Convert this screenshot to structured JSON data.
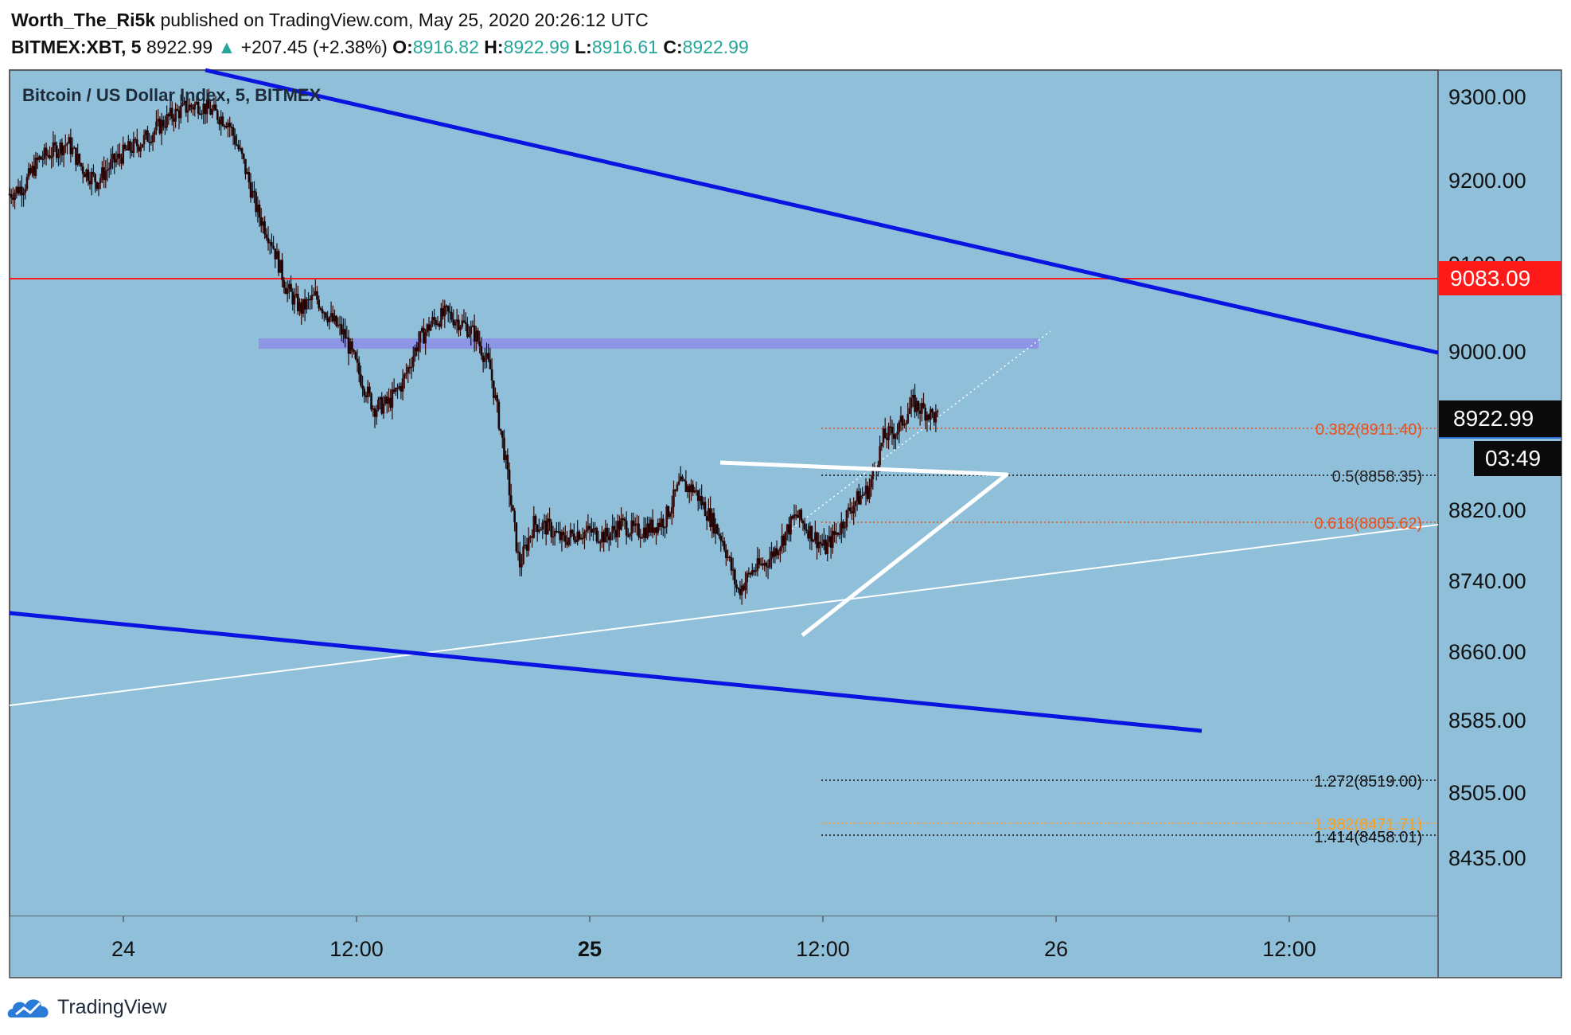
{
  "header": {
    "author": "Worth_The_Ri5k",
    "published": "published on TradingView.com, May 25, 2020 20:26:12 UTC",
    "symbol": "BITMEX:XBT, 5",
    "last": "8922.99",
    "change_arrow": "▲",
    "change": "+207.45 (+2.38%)",
    "o_label": "O:",
    "o": "8916.82",
    "h_label": "H:",
    "h": "8922.99",
    "l_label": "L:",
    "l": "8916.61",
    "c_label": "C:",
    "c": "8922.99"
  },
  "footer": {
    "brand": "TradingView",
    "logo_icon": "tradingview-cloud-icon"
  },
  "colors": {
    "plot_bg": "#8fbfd9",
    "channel": "#0a14e0",
    "red_line": "#ff1a1a",
    "fib_red": "#e8501c",
    "fib_black": "#111111",
    "fib_orange": "#ff9e1a",
    "candle": "#2a0a0a"
  },
  "chart_data": {
    "type": "candlestick",
    "title": "Bitcoin / US Dollar Index, 5, BITMEX",
    "y_ticks": [
      "9300.00",
      "9200.00",
      "9100.00",
      "9000.00",
      "8820.00",
      "8740.00",
      "8660.00",
      "8585.00",
      "8505.00",
      "8435.00"
    ],
    "x_ticks": [
      {
        "label": "24",
        "bold": false
      },
      {
        "label": "12:00",
        "bold": false
      },
      {
        "label": "25",
        "bold": true
      },
      {
        "label": "12:00",
        "bold": false
      },
      {
        "label": "26",
        "bold": false
      },
      {
        "label": "12:00",
        "bold": false
      }
    ],
    "price_labels": [
      {
        "text": "9083.09",
        "kind": "red"
      },
      {
        "text": "8922.99",
        "kind": "black"
      },
      {
        "text": "03:49",
        "kind": "black"
      }
    ],
    "fib_levels": [
      {
        "label": "0.382(8911.40)",
        "color": "red"
      },
      {
        "label": "0.5(8858.35)",
        "color": "black"
      },
      {
        "label": "0.618(8805.62)",
        "color": "red"
      },
      {
        "label": "1.272(8519.00)",
        "color": "black"
      },
      {
        "label": "1.382(8471.71)",
        "color": "orange"
      },
      {
        "label": "1.414(8458.01)",
        "color": "black"
      }
    ],
    "price_path": [
      [
        0.0,
        9185
      ],
      [
        0.5,
        9195
      ],
      [
        1.0,
        9225
      ],
      [
        1.5,
        9235
      ],
      [
        2.0,
        9245
      ],
      [
        2.5,
        9215
      ],
      [
        3.0,
        9200
      ],
      [
        3.5,
        9220
      ],
      [
        4.0,
        9235
      ],
      [
        4.5,
        9245
      ],
      [
        5.0,
        9260
      ],
      [
        5.5,
        9275
      ],
      [
        6.0,
        9285
      ],
      [
        6.5,
        9290
      ],
      [
        7.0,
        9280
      ],
      [
        7.5,
        9270
      ],
      [
        8.0,
        9225
      ],
      [
        8.5,
        9165
      ],
      [
        9.0,
        9130
      ],
      [
        9.5,
        9075
      ],
      [
        10.0,
        9050
      ],
      [
        10.5,
        9065
      ],
      [
        11.0,
        9040
      ],
      [
        11.5,
        9020
      ],
      [
        12.0,
        8975
      ],
      [
        12.5,
        8935
      ],
      [
        13.0,
        8940
      ],
      [
        13.5,
        8965
      ],
      [
        14.0,
        9010
      ],
      [
        14.5,
        9035
      ],
      [
        15.0,
        9045
      ],
      [
        15.5,
        9035
      ],
      [
        16.0,
        9020
      ],
      [
        16.5,
        8980
      ],
      [
        17.0,
        8880
      ],
      [
        17.5,
        8750
      ],
      [
        18.0,
        8800
      ],
      [
        18.5,
        8795
      ],
      [
        19.0,
        8780
      ],
      [
        19.5,
        8790
      ],
      [
        20.0,
        8790
      ],
      [
        20.5,
        8785
      ],
      [
        21.0,
        8800
      ],
      [
        21.5,
        8790
      ],
      [
        22.0,
        8795
      ],
      [
        22.5,
        8805
      ],
      [
        23.0,
        8845
      ],
      [
        23.5,
        8840
      ],
      [
        24.0,
        8810
      ],
      [
        24.5,
        8780
      ],
      [
        25.0,
        8720
      ],
      [
        25.5,
        8745
      ],
      [
        26.0,
        8755
      ],
      [
        26.5,
        8780
      ],
      [
        27.0,
        8810
      ],
      [
        27.5,
        8790
      ],
      [
        28.0,
        8770
      ],
      [
        28.5,
        8795
      ],
      [
        29.0,
        8825
      ],
      [
        29.5,
        8840
      ],
      [
        30.0,
        8900
      ],
      [
        30.5,
        8910
      ],
      [
        31.0,
        8940
      ],
      [
        31.5,
        8930
      ],
      [
        31.9,
        8922
      ]
    ]
  }
}
